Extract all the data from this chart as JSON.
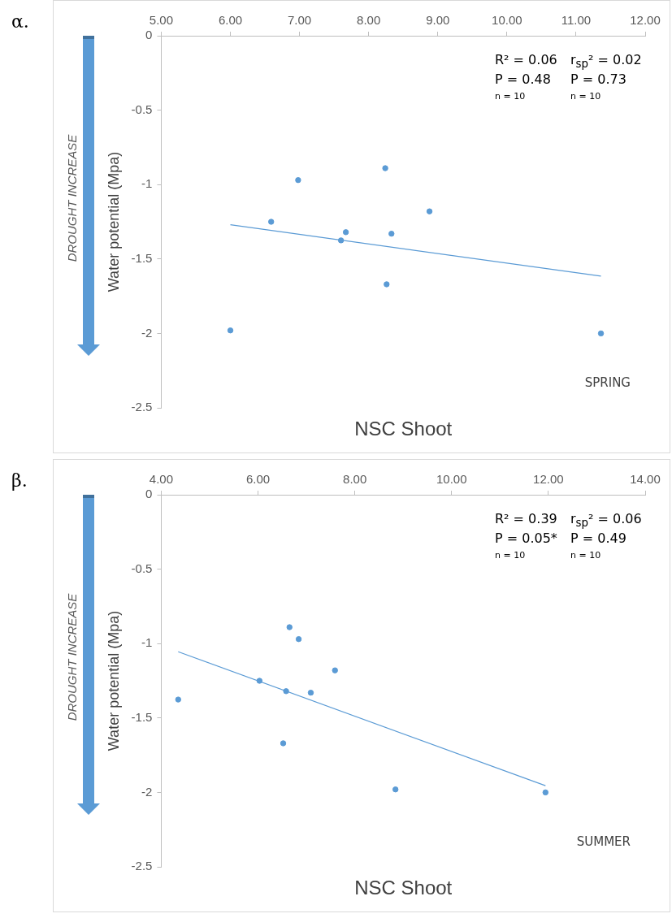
{
  "chart_data": [
    {
      "type": "scatter",
      "title": "α.",
      "xlabel": "NSC Shoot",
      "ylabel": "Water potential (Mpa)",
      "x": [
        6.0,
        6.59,
        6.98,
        7.6,
        7.67,
        8.24,
        8.26,
        8.33,
        8.88,
        11.36
      ],
      "series": [
        {
          "color": "#5b9bd5",
          "values": [
            -1.98,
            -1.25,
            -0.97,
            -1.375,
            -1.32,
            -0.89,
            -1.67,
            -1.33,
            -1.18,
            -2.0
          ]
        },
        {
          "type": "line",
          "marker": "none",
          "color": "#5b9bd5",
          "x": [
            6.0,
            11.36
          ],
          "values": [
            -1.27,
            -1.615
          ]
        }
      ],
      "xlim": [
        5,
        12
      ],
      "xticks": [
        {
          "value": 5,
          "label": "5.00"
        },
        {
          "value": 6,
          "label": "6.00"
        },
        {
          "value": 7,
          "label": "7.00"
        },
        {
          "value": 8,
          "label": "8.00"
        },
        {
          "value": 9,
          "label": "9.00"
        },
        {
          "value": 10,
          "label": "10.00"
        },
        {
          "value": 11,
          "label": "11.00"
        },
        {
          "value": 12,
          "label": "12.00"
        }
      ],
      "ylim": [
        -2.5,
        0
      ],
      "yticks": [
        0,
        -0.5,
        -1,
        -1.5,
        -2,
        -2.5
      ],
      "annotations": [
        "R² = 0.06",
        "r$_{sp}$² = 0.02",
        "P  = 0.48",
        "P  = 0.73",
        "n  = 10",
        "n  = 10",
        "SPRING",
        "DROUGHT INCREASE"
      ],
      "grid": false,
      "legend": false,
      "marker": "circle",
      "line_style": "solid"
    },
    {
      "type": "scatter",
      "title": "β.",
      "xlabel": "NSC Shoot",
      "ylabel": "Water potential (Mpa)",
      "x": [
        4.35,
        6.03,
        6.65,
        6.84,
        6.58,
        7.09,
        7.59,
        6.52,
        8.84,
        11.94
      ],
      "series": [
        {
          "color": "#5b9bd5",
          "values": [
            -1.376,
            -1.25,
            -0.89,
            -0.97,
            -1.32,
            -1.33,
            -1.18,
            -1.67,
            -1.98,
            -2.0
          ]
        },
        {
          "type": "line",
          "marker": "none",
          "color": "#5b9bd5",
          "x": [
            4.35,
            11.94
          ],
          "values": [
            -1.055,
            -1.955
          ]
        }
      ],
      "xlim": [
        4,
        14
      ],
      "xticks": [
        {
          "value": 4,
          "label": "4.00"
        },
        {
          "value": 6,
          "label": "6.00"
        },
        {
          "value": 8,
          "label": "8.00"
        },
        {
          "value": 10,
          "label": "10.00"
        },
        {
          "value": 12,
          "label": "12.00"
        },
        {
          "value": 14,
          "label": "14.00"
        }
      ],
      "ylim": [
        -2.5,
        0
      ],
      "yticks": [
        0,
        -0.5,
        -1,
        -1.5,
        -2,
        -2.5
      ],
      "annotations": [
        "R² = 0.39",
        "r$_{sp}$² = 0.06",
        "P = 0.05*",
        "P  = 0.49",
        "n = 10",
        "n = 10",
        "SUMMER",
        "DROUGHT INCREASE"
      ],
      "grid": false,
      "legend": false,
      "marker": "circle",
      "line_style": "solid"
    }
  ]
}
